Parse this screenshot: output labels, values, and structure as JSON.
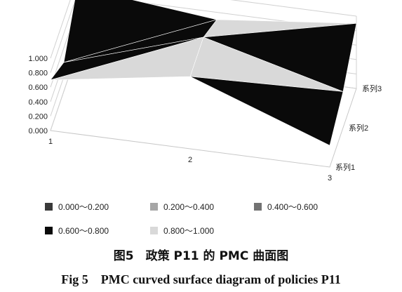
{
  "chart_data": {
    "type": "surface3d",
    "x_categories": [
      "1",
      "2",
      "3"
    ],
    "series_axis": [
      "系列1",
      "系列2",
      "系列3"
    ],
    "z_ticks": [
      "0.000",
      "0.200",
      "0.400",
      "0.600",
      "0.800",
      "1.000"
    ],
    "zlim": [
      0,
      1
    ],
    "z_values": [
      [
        0.7,
        1.0,
        0.3
      ],
      [
        0.4,
        1.0,
        0.5
      ],
      [
        0.9,
        0.7,
        0.9
      ]
    ],
    "legend": [
      {
        "label": "0.000～0.200",
        "color": "#3a3a3a"
      },
      {
        "label": "0.200～0.400",
        "color": "#a6a6a6"
      },
      {
        "label": "0.400～0.600",
        "color": "#737373"
      },
      {
        "label": "0.600～0.800",
        "color": "#0a0a0a"
      },
      {
        "label": "0.800～1.000",
        "color": "#d9d9d9"
      }
    ],
    "legend_position": "bottom"
  },
  "caption": {
    "cn": "图5　政策 P11 的 PMC 曲面图",
    "en": "Fig 5　PMC curved surface diagram of policies P11"
  }
}
